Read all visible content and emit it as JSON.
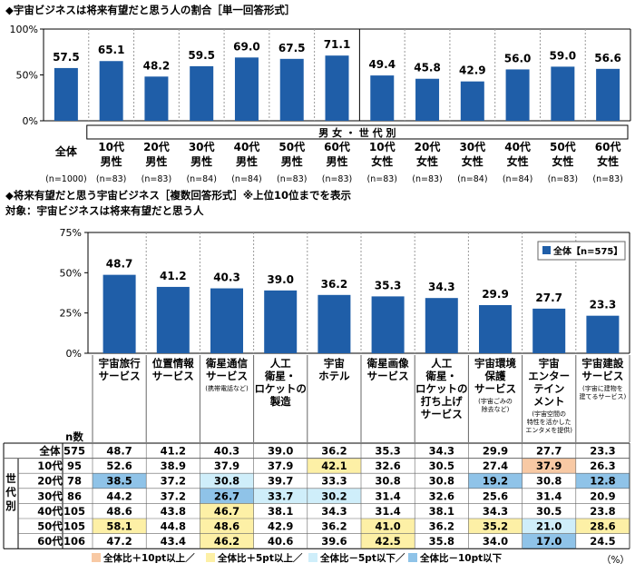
{
  "chart_data": [
    {
      "type": "bar",
      "title": "◆宇宙ビジネスは将来有望だと思う人の割合［単一回答形式］",
      "yticks": [
        "100%",
        "50%",
        "0%"
      ],
      "ylim": [
        0,
        100
      ],
      "group_label": "男 女 ・ 世 代 別",
      "categories": [
        {
          "line1": "全体",
          "line2": "",
          "n": "(n=1000)"
        },
        {
          "line1": "10代",
          "line2": "男性",
          "n": "(n=83)"
        },
        {
          "line1": "20代",
          "line2": "男性",
          "n": "(n=83)"
        },
        {
          "line1": "30代",
          "line2": "男性",
          "n": "(n=84)"
        },
        {
          "line1": "40代",
          "line2": "男性",
          "n": "(n=84)"
        },
        {
          "line1": "50代",
          "line2": "男性",
          "n": "(n=83)"
        },
        {
          "line1": "60代",
          "line2": "男性",
          "n": "(n=83)"
        },
        {
          "line1": "10代",
          "line2": "女性",
          "n": "(n=83)"
        },
        {
          "line1": "20代",
          "line2": "女性",
          "n": "(n=83)"
        },
        {
          "line1": "30代",
          "line2": "女性",
          "n": "(n=84)"
        },
        {
          "line1": "40代",
          "line2": "女性",
          "n": "(n=84)"
        },
        {
          "line1": "50代",
          "line2": "女性",
          "n": "(n=83)"
        },
        {
          "line1": "60代",
          "line2": "女性",
          "n": "(n=83)"
        }
      ],
      "values": [
        57.5,
        65.1,
        48.2,
        59.5,
        69.0,
        67.5,
        71.1,
        49.4,
        45.8,
        42.9,
        56.0,
        59.0,
        56.6
      ],
      "labels": [
        "57.5",
        "65.1",
        "48.2",
        "59.5",
        "69.0",
        "67.5",
        "71.1",
        "49.4",
        "45.8",
        "42.9",
        "56.0",
        "59.0",
        "56.6"
      ],
      "bar_color": "#1f5ea8"
    },
    {
      "type": "bar",
      "title": "◆将来有望だと思う宇宙ビジネス［複数回答形式］※上位10位までを表示",
      "subtitle": "対象：宇宙ビジネスは将来有望だと思う人",
      "yticks": [
        "75%",
        "50%",
        "25%",
        "0%"
      ],
      "ylim": [
        0,
        75
      ],
      "legend": "全体【n=575】",
      "categories": [
        {
          "lines": [
            "宇宙旅行",
            "サービス"
          ],
          "note": []
        },
        {
          "lines": [
            "位置情報",
            "サービス"
          ],
          "note": []
        },
        {
          "lines": [
            "衛星通信",
            "サービス"
          ],
          "note": [
            "(携帯電話など)"
          ]
        },
        {
          "lines": [
            "人工",
            "衛星・",
            "ロケットの",
            "製造"
          ],
          "note": []
        },
        {
          "lines": [
            "宇宙",
            "ホテル"
          ],
          "note": []
        },
        {
          "lines": [
            "衛星画像",
            "サービス"
          ],
          "note": []
        },
        {
          "lines": [
            "人工",
            "衛星・",
            "ロケットの",
            "打ち上げ",
            "サービス"
          ],
          "note": []
        },
        {
          "lines": [
            "宇宙環境",
            "保護",
            "サービス"
          ],
          "note": [
            "(宇宙ごみの",
            "除去など)"
          ]
        },
        {
          "lines": [
            "宇宙",
            "エンター",
            "テイン",
            "メント"
          ],
          "note": [
            "(宇宙空間の",
            "特性を活かした",
            "エンタメを提供)"
          ]
        },
        {
          "lines": [
            "宇宙建設",
            "サービス"
          ],
          "note": [
            "(宇宙に建物を",
            "建てるサービス)"
          ]
        }
      ],
      "values": [
        48.7,
        41.2,
        40.3,
        39.0,
        36.2,
        35.3,
        34.3,
        29.9,
        27.7,
        23.3
      ],
      "labels": [
        "48.7",
        "41.2",
        "40.3",
        "39.0",
        "36.2",
        "35.3",
        "34.3",
        "29.9",
        "27.7",
        "23.3"
      ],
      "bar_color": "#1f5ea8"
    },
    {
      "type": "table",
      "n_header": "n数",
      "side_label": [
        "世",
        "代",
        "別"
      ],
      "rows": [
        {
          "label": "全体",
          "n": "575",
          "values": [
            "48.7",
            "41.2",
            "40.3",
            "39.0",
            "36.2",
            "35.3",
            "34.3",
            "29.9",
            "27.7",
            "23.3"
          ],
          "hl": [
            "",
            "",
            "",
            "",
            "",
            "",
            "",
            "",
            "",
            ""
          ]
        },
        {
          "label": "10代",
          "n": "95",
          "values": [
            "52.6",
            "38.9",
            "37.9",
            "37.9",
            "42.1",
            "32.6",
            "30.5",
            "27.4",
            "37.9",
            "26.3"
          ],
          "hl": [
            "",
            "",
            "",
            "",
            "y",
            "",
            "",
            "",
            "o",
            ""
          ]
        },
        {
          "label": "20代",
          "n": "78",
          "values": [
            "38.5",
            "37.2",
            "30.8",
            "39.7",
            "33.3",
            "30.8",
            "30.8",
            "19.2",
            "30.8",
            "12.8"
          ],
          "hl": [
            "b",
            "",
            "l",
            "",
            "",
            "",
            "",
            "b",
            "",
            "b"
          ]
        },
        {
          "label": "30代",
          "n": "86",
          "values": [
            "44.2",
            "37.2",
            "26.7",
            "33.7",
            "30.2",
            "31.4",
            "32.6",
            "25.6",
            "31.4",
            "20.9"
          ],
          "hl": [
            "",
            "",
            "b",
            "l",
            "l",
            "",
            "",
            "",
            "",
            ""
          ]
        },
        {
          "label": "40代",
          "n": "105",
          "values": [
            "48.6",
            "43.8",
            "46.7",
            "38.1",
            "34.3",
            "31.4",
            "38.1",
            "34.3",
            "30.5",
            "23.8"
          ],
          "hl": [
            "",
            "",
            "y",
            "",
            "",
            "",
            "",
            "",
            "",
            ""
          ]
        },
        {
          "label": "50代",
          "n": "105",
          "values": [
            "58.1",
            "44.8",
            "48.6",
            "42.9",
            "36.2",
            "41.0",
            "36.2",
            "35.2",
            "21.0",
            "28.6"
          ],
          "hl": [
            "y",
            "",
            "y",
            "",
            "",
            "y",
            "",
            "y",
            "l",
            "y"
          ]
        },
        {
          "label": "60代",
          "n": "106",
          "values": [
            "47.2",
            "43.4",
            "46.2",
            "40.6",
            "39.6",
            "42.5",
            "35.8",
            "34.0",
            "17.0",
            "24.5"
          ],
          "hl": [
            "",
            "",
            "y",
            "",
            "",
            "y",
            "",
            "",
            "b",
            ""
          ]
        }
      ],
      "legend": [
        {
          "key": "o",
          "label": "全体比＋10pt以上／",
          "color": "#f8c9a4"
        },
        {
          "key": "y",
          "label": "全体比＋5pt以上／",
          "color": "#fdf0a6"
        },
        {
          "key": "l",
          "label": "全体比－5pt以下／",
          "color": "#cfeefa"
        },
        {
          "key": "b",
          "label": "全体比－10pt以下",
          "color": "#8fc3e8"
        }
      ],
      "unit": "（%）"
    }
  ]
}
